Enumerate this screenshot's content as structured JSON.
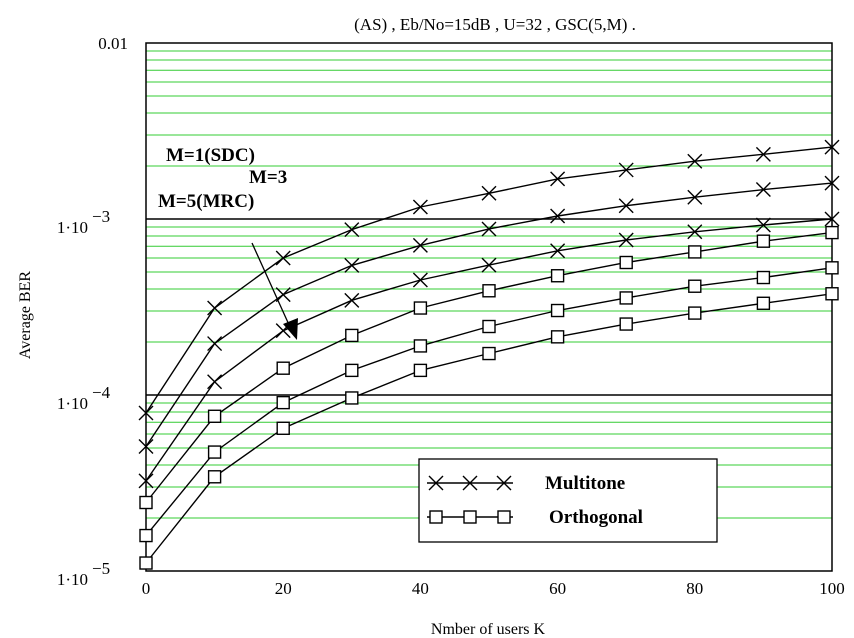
{
  "chart_data": {
    "type": "line",
    "title": "(AS) , Eb/No=15dB , U=32 , GSC(5,M) .",
    "xlabel": "Nmber of users K",
    "ylabel": "Average BER",
    "xlim": [
      0,
      100
    ],
    "ylim": [
      1e-05,
      0.01
    ],
    "yscale": "log",
    "grid": "minor horizontal lines (green), major decade lines (black)",
    "grid_color": "#33cc33",
    "x_ticks": [
      {
        "value": 0,
        "label": "0"
      },
      {
        "value": 20,
        "label": "20"
      },
      {
        "value": 40,
        "label": "40"
      },
      {
        "value": 60,
        "label": "60"
      },
      {
        "value": 80,
        "label": "80"
      },
      {
        "value": 100,
        "label": "100"
      }
    ],
    "y_ticks": [
      {
        "value": 0.01,
        "label": "0.01",
        "base": "",
        "exp": ""
      },
      {
        "value": 0.001,
        "label": "1·10",
        "base": "1·10",
        "exp": "−3"
      },
      {
        "value": 0.0001,
        "label": "1·10",
        "base": "1·10",
        "exp": "−4"
      },
      {
        "value": 1e-05,
        "label": "1·10",
        "base": "1·10",
        "exp": "−5"
      }
    ],
    "x": [
      0,
      10,
      20,
      30,
      40,
      50,
      60,
      70,
      80,
      90,
      100
    ],
    "series": [
      {
        "marker": "x",
        "group": "Multitone",
        "values": [
          7.9e-05,
          0.000312,
          0.0006,
          0.00087,
          0.00117,
          0.0014,
          0.00169,
          0.0019,
          0.00213,
          0.00233,
          0.00256
        ]
      },
      {
        "marker": "x",
        "group": "Multitone",
        "values": [
          5.1e-05,
          0.000196,
          0.000372,
          0.000545,
          0.000708,
          0.000878,
          0.00104,
          0.00119,
          0.00133,
          0.00147,
          0.0016
        ]
      },
      {
        "marker": "x",
        "group": "Multitone",
        "values": [
          3.25e-05,
          0.000119,
          0.000232,
          0.000345,
          0.00045,
          0.000547,
          0.00066,
          0.00076,
          0.000846,
          0.000924,
          0.001
        ]
      },
      {
        "marker": "square",
        "group": "Orthogonal",
        "values": [
          2.45e-05,
          7.57e-05,
          0.000142,
          0.000218,
          0.000312,
          0.000391,
          0.000476,
          0.000566,
          0.00065,
          0.000748,
          0.000837
        ]
      },
      {
        "marker": "square",
        "group": "Orthogonal",
        "values": [
          1.59e-05,
          4.74e-05,
          9.05e-05,
          0.000138,
          0.00019,
          0.000245,
          0.000302,
          0.000356,
          0.000415,
          0.000465,
          0.000528
        ]
      },
      {
        "marker": "square",
        "group": "Orthogonal",
        "values": [
          1.11e-05,
          3.43e-05,
          6.47e-05,
          9.62e-05,
          0.000138,
          0.000172,
          0.000214,
          0.000253,
          0.000292,
          0.000332,
          0.000376
        ]
      }
    ],
    "annotations": [
      "M=1(SDC)",
      "M=3",
      "M=5(MRC)"
    ],
    "legend": {
      "placement": "bottom-right",
      "entries": [
        {
          "marker": "x",
          "label": "Multitone"
        },
        {
          "marker": "square",
          "label": "Orthogonal"
        }
      ]
    }
  }
}
